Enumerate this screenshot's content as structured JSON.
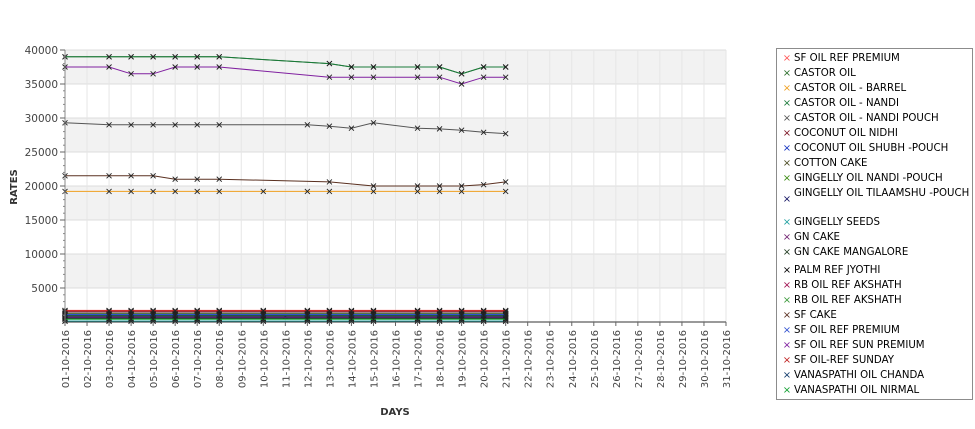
{
  "chart_data": {
    "type": "line",
    "xlabel": "DAYS",
    "ylabel": "RATES",
    "ylim": [
      0,
      40000
    ],
    "yticks": [
      5000,
      10000,
      15000,
      20000,
      25000,
      30000,
      35000,
      40000
    ],
    "x": [
      "01-10-2016",
      "02-10-2016",
      "03-10-2016",
      "04-10-2016",
      "05-10-2016",
      "06-10-2016",
      "07-10-2016",
      "08-10-2016",
      "09-10-2016",
      "10-10-2016",
      "11-10-2016",
      "12-10-2016",
      "13-10-2016",
      "14-10-2016",
      "15-10-2016",
      "16-10-2016",
      "17-10-2016",
      "18-10-2016",
      "19-10-2016",
      "20-10-2016",
      "21-10-2016",
      "22-10-2016",
      "23-10-2016",
      "24-10-2016",
      "25-10-2016",
      "26-10-2016",
      "27-10-2016",
      "28-10-2016",
      "29-10-2016",
      "30-10-2016",
      "31-10-2016"
    ],
    "grid": true,
    "legend_position": "right",
    "series": [
      {
        "name": " SF OIL REF PREMIUM",
        "color": "#ff5555",
        "values": [
          1700,
          null,
          1700,
          1700,
          1700,
          1700,
          1700,
          1700,
          null,
          1700,
          null,
          1700,
          1700,
          1700,
          1700,
          null,
          1700,
          1700,
          1700,
          1700,
          1700,
          null,
          null,
          null,
          null,
          null,
          null,
          null,
          null,
          null,
          null
        ]
      },
      {
        "name": "CASTOR OIL",
        "color": "#2a6e2a",
        "values": [
          39000,
          null,
          39000,
          39000,
          39000,
          39000,
          39000,
          39000,
          null,
          null,
          null,
          null,
          38000,
          37500,
          37500,
          null,
          37500,
          37500,
          36500,
          37500,
          37500,
          null,
          null,
          null,
          null,
          null,
          null,
          null,
          null,
          null,
          null
        ]
      },
      {
        "name": "CASTOR OIL - BARREL",
        "color": "#f0a020",
        "values": [
          19200,
          null,
          19200,
          19200,
          19200,
          19200,
          19200,
          19200,
          null,
          19200,
          null,
          19200,
          19200,
          null,
          19200,
          null,
          19200,
          19200,
          19200,
          null,
          19200,
          null,
          null,
          null,
          null,
          null,
          null,
          null,
          null,
          null,
          null
        ]
      },
      {
        "name": "CASTOR OIL - NANDI",
        "color": "#1a7a3a",
        "values": [
          39000,
          null,
          39000,
          39000,
          39000,
          39000,
          39000,
          39000,
          null,
          null,
          null,
          null,
          38000,
          37500,
          37500,
          null,
          37500,
          37500,
          36500,
          37500,
          37500,
          null,
          null,
          null,
          null,
          null,
          null,
          null,
          null,
          null,
          null
        ]
      },
      {
        "name": "CASTOR OIL - NANDI POUCH",
        "color": "#555555",
        "values": [
          29300,
          null,
          29000,
          29000,
          29000,
          29000,
          29000,
          29000,
          null,
          null,
          null,
          29000,
          28800,
          28500,
          29300,
          null,
          28500,
          28400,
          28200,
          27900,
          27700,
          null,
          null,
          null,
          null,
          null,
          null,
          null,
          null,
          null,
          null
        ]
      },
      {
        "name": "COCONUT OIL NIDHI",
        "color": "#7a1020",
        "values": [
          1500,
          null,
          1500,
          1500,
          1500,
          1500,
          1500,
          1500,
          null,
          1500,
          null,
          1500,
          1500,
          1500,
          1500,
          null,
          1500,
          1500,
          1500,
          1500,
          1500,
          null,
          null,
          null,
          null,
          null,
          null,
          null,
          null,
          null,
          null
        ]
      },
      {
        "name": "COCONUT OIL SHUBH -POUCH",
        "color": "#1030c0",
        "values": [
          100,
          null,
          100,
          100,
          100,
          100,
          100,
          100,
          null,
          100,
          null,
          100,
          100,
          100,
          100,
          null,
          100,
          100,
          100,
          100,
          100,
          null,
          null,
          null,
          null,
          null,
          null,
          null,
          null,
          null,
          null
        ]
      },
      {
        "name": "COTTON CAKE",
        "color": "#4a4a20",
        "values": [
          800,
          null,
          800,
          800,
          800,
          800,
          800,
          800,
          null,
          800,
          800,
          800,
          800,
          800,
          800,
          null,
          800,
          800,
          800,
          800,
          800,
          null,
          null,
          null,
          null,
          null,
          null,
          null,
          null,
          null,
          null
        ]
      },
      {
        "name": "GINGELLY OIL NANDI -POUCH",
        "color": "#3a8a10",
        "values": [
          1000,
          null,
          1000,
          1000,
          1000,
          1000,
          1000,
          1000,
          null,
          1000,
          null,
          1000,
          1000,
          1000,
          1000,
          null,
          1000,
          1000,
          1000,
          1000,
          1000,
          null,
          null,
          null,
          null,
          null,
          null,
          null,
          null,
          null,
          null
        ]
      },
      {
        "name": "GINGELLY OIL TILAAMSHU -POUCH",
        "color": "#101060",
        "values": [
          600,
          null,
          600,
          600,
          600,
          600,
          600,
          600,
          null,
          600,
          null,
          600,
          600,
          600,
          600,
          null,
          600,
          600,
          600,
          600,
          600,
          null,
          null,
          null,
          null,
          null,
          null,
          null,
          null,
          null,
          null
        ]
      },
      {
        "name": "GINGELLY SEEDS",
        "color": "#20a0a0",
        "values": [
          150,
          null,
          150,
          150,
          150,
          150,
          150,
          150,
          null,
          150,
          null,
          150,
          150,
          150,
          150,
          null,
          150,
          150,
          150,
          150,
          150,
          null,
          null,
          null,
          null,
          null,
          null,
          null,
          null,
          null,
          null
        ]
      },
      {
        "name": "GN CAKE",
        "color": "#702070",
        "values": [
          700,
          null,
          700,
          700,
          700,
          700,
          700,
          700,
          null,
          700,
          null,
          700,
          700,
          700,
          700,
          null,
          700,
          700,
          700,
          700,
          700,
          null,
          null,
          null,
          null,
          null,
          null,
          null,
          null,
          null,
          null
        ]
      },
      {
        "name": "GN CAKE MANGALORE",
        "color": "#203a20",
        "values": [
          500,
          null,
          500,
          500,
          500,
          500,
          500,
          500,
          null,
          500,
          null,
          500,
          500,
          500,
          500,
          null,
          500,
          500,
          500,
          500,
          500,
          null,
          null,
          null,
          null,
          null,
          null,
          null,
          null,
          null,
          null
        ]
      },
      {
        "name": "PALM REF JYOTHI",
        "color": "#000000",
        "values": [
          1300,
          null,
          1300,
          1300,
          1300,
          1300,
          1300,
          1300,
          null,
          1300,
          null,
          1300,
          1300,
          1300,
          1300,
          null,
          1300,
          1300,
          1300,
          1300,
          1300,
          null,
          null,
          null,
          null,
          null,
          null,
          null,
          null,
          null,
          null
        ]
      },
      {
        "name": "RB OIL REF  AKSHATH",
        "color": "#a01050",
        "values": [
          1250,
          null,
          1250,
          1250,
          1250,
          1250,
          1250,
          1250,
          null,
          1250,
          null,
          1250,
          1250,
          1250,
          1250,
          null,
          1250,
          1250,
          1250,
          1250,
          1250,
          null,
          null,
          null,
          null,
          null,
          null,
          null,
          null,
          null,
          null
        ]
      },
      {
        "name": "RB OIL REF AKSHATH",
        "color": "#3a9a3a",
        "values": [
          1200,
          null,
          1200,
          1200,
          1200,
          1200,
          1200,
          1200,
          null,
          1200,
          null,
          1200,
          1200,
          1200,
          1200,
          null,
          1200,
          1200,
          1200,
          1200,
          1200,
          null,
          null,
          null,
          null,
          null,
          null,
          null,
          null,
          null,
          null
        ]
      },
      {
        "name": "SF CAKE",
        "color": "#5a3020",
        "values": [
          21500,
          null,
          21500,
          21500,
          21500,
          21000,
          21000,
          21000,
          null,
          null,
          null,
          null,
          20600,
          null,
          20000,
          null,
          20000,
          20000,
          20000,
          20200,
          20600,
          null,
          null,
          null,
          null,
          null,
          null,
          null,
          null,
          null,
          null
        ]
      },
      {
        "name": "SF OIL REF PREMIUM",
        "color": "#3050d0",
        "values": [
          1100,
          null,
          1100,
          1100,
          1100,
          1100,
          1100,
          1100,
          null,
          1100,
          null,
          1100,
          1100,
          1100,
          1100,
          null,
          1100,
          1100,
          1100,
          1100,
          1100,
          null,
          null,
          null,
          null,
          null,
          null,
          null,
          null,
          null,
          null
        ]
      },
      {
        "name": "SF OIL REF SUN PREMIUM",
        "color": "#8020a0",
        "values": [
          37500,
          null,
          37500,
          36500,
          36500,
          37500,
          37500,
          37500,
          null,
          null,
          null,
          null,
          36000,
          36000,
          36000,
          null,
          36000,
          36000,
          35000,
          36000,
          36000,
          null,
          null,
          null,
          null,
          null,
          null,
          null,
          null,
          null,
          null
        ]
      },
      {
        "name": "SF OIL-REF SUNDAY",
        "color": "#c02020",
        "values": [
          1650,
          null,
          1650,
          1650,
          1650,
          1650,
          1650,
          1650,
          null,
          1650,
          null,
          1650,
          1650,
          1650,
          1650,
          null,
          1650,
          1650,
          1650,
          1650,
          1650,
          null,
          null,
          null,
          null,
          null,
          null,
          null,
          null,
          null,
          null
        ]
      },
      {
        "name": "VANASPATHI OIL CHANDA",
        "color": "#103a6a",
        "values": [
          900,
          null,
          900,
          900,
          900,
          900,
          900,
          900,
          null,
          900,
          null,
          900,
          900,
          900,
          900,
          null,
          900,
          900,
          900,
          900,
          900,
          null,
          null,
          null,
          null,
          null,
          null,
          null,
          null,
          null,
          null
        ]
      },
      {
        "name": "VANASPATHI OIL NIRMAL",
        "color": "#10a030",
        "values": [
          400,
          null,
          400,
          400,
          400,
          400,
          400,
          400,
          null,
          400,
          null,
          400,
          400,
          400,
          400,
          null,
          400,
          400,
          400,
          400,
          400,
          null,
          null,
          null,
          null,
          null,
          null,
          null,
          null,
          null,
          null
        ]
      }
    ]
  }
}
